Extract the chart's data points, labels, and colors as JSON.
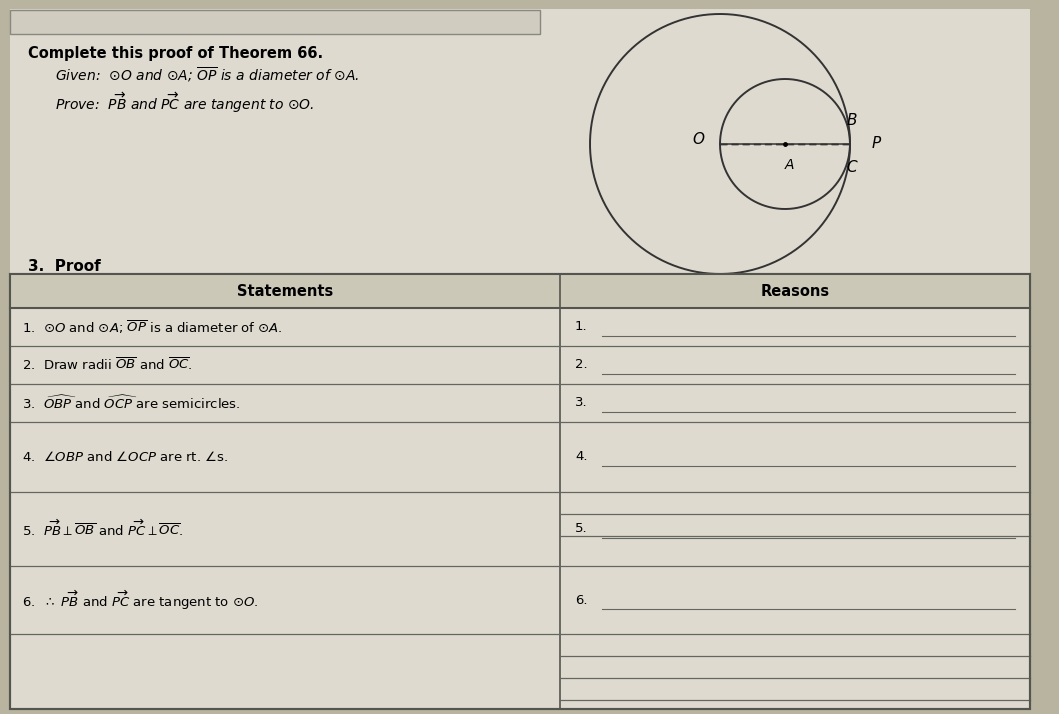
{
  "bg_color": "#b8b4a0",
  "page_bg": "#dedad0",
  "title": "Complete this proof of Theorem 66.",
  "section_title": "3.  Proof",
  "col1_header": "Statements",
  "col2_header": "Reasons",
  "statements": [
    "1.  $\\odot O$ and $\\odot A$; $\\overline{OP}$ is a diameter of $\\odot A$.",
    "2.  Draw radii $\\overline{OB}$ and $\\overline{OC}$.",
    "3.  $\\widehat{OBP}$ and $\\widehat{OCP}$ are semicircles.",
    "4.  $\\angle OBP$ and $\\angle OCP$ are rt. $\\angle$s.",
    "5.  $\\overrightarrow{PB}\\perp\\overline{OB}$ and $\\overrightarrow{PC}\\perp\\overline{OC}$.",
    "6.  $\\therefore$ $\\overrightarrow{PB}$ and $\\overrightarrow{PC}$ are tangent to $\\odot O$."
  ],
  "reason_numbers": [
    "1.",
    "2.",
    "3.",
    "4.",
    "5.",
    "6."
  ],
  "given_text": "Given:  $\\odot O$ and $\\odot A$; $\\overline{OP}$ is a diameter of $\\odot A$.",
  "prove_text": "Prove:  $\\overrightarrow{PB}$ and $\\overrightarrow{PC}$ are tangent to $\\odot O$."
}
